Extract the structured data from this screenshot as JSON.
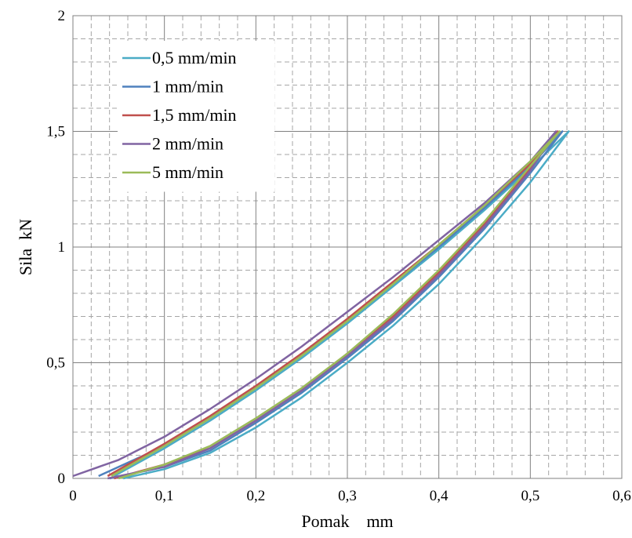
{
  "chart_data": {
    "type": "line",
    "xlabel": "Pomak    mm",
    "ylabel": "Sila  kN",
    "xlim": [
      0,
      0.6
    ],
    "ylim": [
      0,
      2
    ],
    "x_ticks": [
      "0",
      "0,1",
      "0,2",
      "0,3",
      "0,4",
      "0,5",
      "0,6"
    ],
    "y_ticks": [
      "0",
      "0,5",
      "1",
      "1,5",
      "2"
    ],
    "grid": {
      "major": "solid",
      "minor": "dashed"
    },
    "legend_position": "top-left",
    "series": [
      {
        "name": "0,5 mm/min",
        "color": "#4bacc6",
        "loading": [
          [
            0.045,
            0.01
          ],
          [
            0.1,
            0.13
          ],
          [
            0.15,
            0.25
          ],
          [
            0.2,
            0.38
          ],
          [
            0.25,
            0.52
          ],
          [
            0.3,
            0.67
          ],
          [
            0.35,
            0.83
          ],
          [
            0.4,
            0.99
          ],
          [
            0.45,
            1.16
          ],
          [
            0.5,
            1.34
          ],
          [
            0.542,
            1.5
          ]
        ],
        "unloading": [
          [
            0.542,
            1.5
          ],
          [
            0.5,
            1.28
          ],
          [
            0.45,
            1.05
          ],
          [
            0.4,
            0.84
          ],
          [
            0.35,
            0.66
          ],
          [
            0.3,
            0.5
          ],
          [
            0.25,
            0.35
          ],
          [
            0.2,
            0.22
          ],
          [
            0.15,
            0.11
          ],
          [
            0.1,
            0.04
          ],
          [
            0.055,
            0.0
          ]
        ]
      },
      {
        "name": "1 mm/min",
        "color": "#4f81bd",
        "loading": [
          [
            0.028,
            0.01
          ],
          [
            0.1,
            0.14
          ],
          [
            0.15,
            0.26
          ],
          [
            0.2,
            0.39
          ],
          [
            0.25,
            0.53
          ],
          [
            0.3,
            0.68
          ],
          [
            0.35,
            0.84
          ],
          [
            0.4,
            1.0
          ],
          [
            0.45,
            1.17
          ],
          [
            0.5,
            1.35
          ],
          [
            0.535,
            1.5
          ]
        ],
        "unloading": [
          [
            0.535,
            1.5
          ],
          [
            0.5,
            1.32
          ],
          [
            0.45,
            1.08
          ],
          [
            0.4,
            0.87
          ],
          [
            0.35,
            0.68
          ],
          [
            0.3,
            0.52
          ],
          [
            0.25,
            0.37
          ],
          [
            0.2,
            0.24
          ],
          [
            0.15,
            0.12
          ],
          [
            0.1,
            0.05
          ],
          [
            0.04,
            0.0
          ]
        ]
      },
      {
        "name": "1,5 mm/min",
        "color": "#c0504d",
        "loading": [
          [
            0.038,
            0.01
          ],
          [
            0.1,
            0.15
          ],
          [
            0.15,
            0.27
          ],
          [
            0.2,
            0.4
          ],
          [
            0.25,
            0.54
          ],
          [
            0.3,
            0.69
          ],
          [
            0.35,
            0.85
          ],
          [
            0.4,
            1.01
          ],
          [
            0.45,
            1.18
          ],
          [
            0.5,
            1.36
          ],
          [
            0.53,
            1.5
          ]
        ],
        "unloading": [
          [
            0.53,
            1.5
          ],
          [
            0.5,
            1.34
          ],
          [
            0.45,
            1.1
          ],
          [
            0.4,
            0.89
          ],
          [
            0.35,
            0.7
          ],
          [
            0.3,
            0.54
          ],
          [
            0.25,
            0.38
          ],
          [
            0.2,
            0.25
          ],
          [
            0.15,
            0.13
          ],
          [
            0.1,
            0.06
          ],
          [
            0.045,
            0.0
          ]
        ]
      },
      {
        "name": "2 mm/min",
        "color": "#8064a2",
        "loading": [
          [
            0.0,
            0.01
          ],
          [
            0.05,
            0.08
          ],
          [
            0.1,
            0.18
          ],
          [
            0.15,
            0.3
          ],
          [
            0.2,
            0.43
          ],
          [
            0.25,
            0.57
          ],
          [
            0.3,
            0.72
          ],
          [
            0.35,
            0.87
          ],
          [
            0.4,
            1.03
          ],
          [
            0.45,
            1.19
          ],
          [
            0.5,
            1.37
          ],
          [
            0.528,
            1.5
          ]
        ],
        "unloading": [
          [
            0.528,
            1.5
          ],
          [
            0.5,
            1.33
          ],
          [
            0.45,
            1.09
          ],
          [
            0.4,
            0.88
          ],
          [
            0.35,
            0.69
          ],
          [
            0.3,
            0.53
          ],
          [
            0.25,
            0.38
          ],
          [
            0.2,
            0.25
          ],
          [
            0.15,
            0.13
          ],
          [
            0.1,
            0.05
          ],
          [
            0.038,
            0.0
          ]
        ]
      },
      {
        "name": "5 mm/min",
        "color": "#9bbb59",
        "loading": [
          [
            0.042,
            0.01
          ],
          [
            0.1,
            0.14
          ],
          [
            0.15,
            0.26
          ],
          [
            0.2,
            0.39
          ],
          [
            0.25,
            0.53
          ],
          [
            0.3,
            0.68
          ],
          [
            0.35,
            0.84
          ],
          [
            0.4,
            1.01
          ],
          [
            0.45,
            1.18
          ],
          [
            0.5,
            1.37
          ],
          [
            0.532,
            1.5
          ]
        ],
        "unloading": [
          [
            0.532,
            1.5
          ],
          [
            0.5,
            1.35
          ],
          [
            0.45,
            1.11
          ],
          [
            0.4,
            0.9
          ],
          [
            0.35,
            0.71
          ],
          [
            0.3,
            0.54
          ],
          [
            0.25,
            0.39
          ],
          [
            0.2,
            0.26
          ],
          [
            0.15,
            0.14
          ],
          [
            0.1,
            0.06
          ],
          [
            0.05,
            0.0
          ]
        ]
      }
    ]
  }
}
